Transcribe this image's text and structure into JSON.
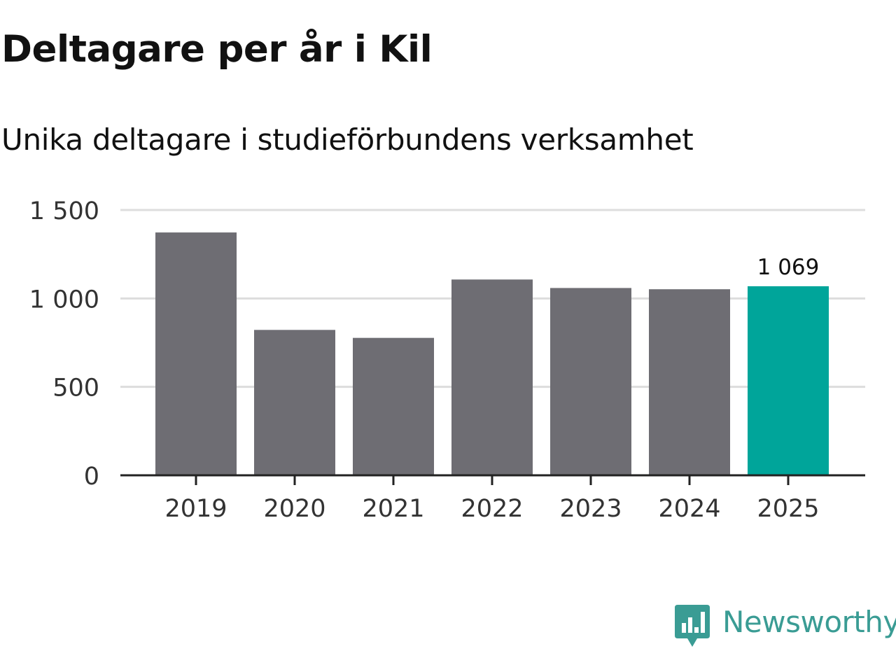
{
  "chart_data": {
    "type": "bar",
    "title": "Deltagare per år i Kil",
    "subtitle": "Unika deltagare i studieförbundens verksamhet",
    "xlabel": "",
    "ylabel": "",
    "categories": [
      "2019",
      "2020",
      "2021",
      "2022",
      "2023",
      "2024",
      "2025"
    ],
    "values": [
      1373,
      822,
      777,
      1107,
      1059,
      1052,
      1069
    ],
    "ylim": [
      0,
      1500
    ],
    "yticks": [
      0,
      500,
      1000,
      1500
    ],
    "ytick_labels": [
      "0",
      "500",
      "1 000",
      "1 500"
    ],
    "grid": true,
    "highlight_index": 6,
    "highlight_label": "1 069",
    "colors": {
      "bar": "#6e6d73",
      "highlight": "#00a59a",
      "grid": "#dddddd",
      "axis": "#222222",
      "tick_text": "#333333"
    }
  },
  "brand": {
    "name": "Newsworthy",
    "icon": "newsworthy-logo-icon",
    "color": "#3a9c94"
  }
}
